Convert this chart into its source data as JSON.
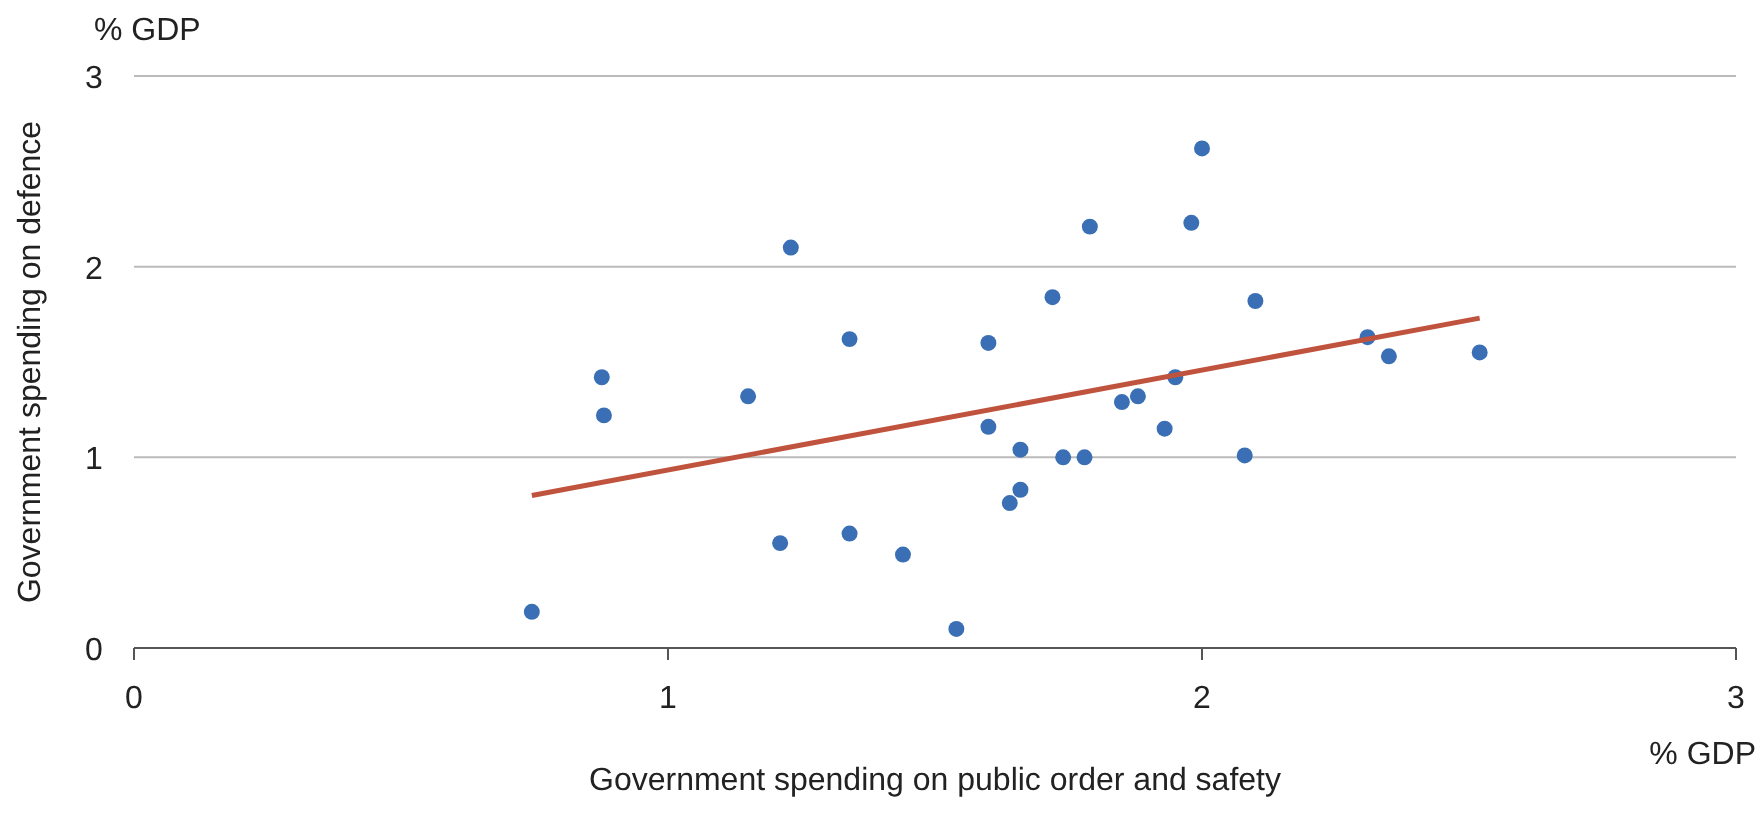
{
  "chart_data": {
    "type": "scatter",
    "xlabel": "Government spending on public order and safety",
    "ylabel": "Government spending on defence",
    "annotations": [
      "% GDP",
      "% GDP"
    ],
    "xlim": [
      0,
      3
    ],
    "ylim": [
      0,
      3
    ],
    "xticks": [
      0,
      1,
      2,
      3
    ],
    "yticks": [
      0,
      1,
      2,
      3
    ],
    "grid": "y",
    "series": [
      {
        "marker": "circle",
        "color": "#3a6fb5",
        "x": [
          0.745,
          0.876,
          0.88,
          1.15,
          1.23,
          1.21,
          1.34,
          1.34,
          1.44,
          1.54,
          1.6,
          1.6,
          1.72,
          1.64,
          1.66,
          1.66,
          1.74,
          1.78,
          1.79,
          1.85,
          1.88,
          1.93,
          1.95,
          1.98,
          2.0,
          2.08,
          2.1,
          2.31,
          2.35,
          2.52
        ],
        "values": [
          0.19,
          1.42,
          1.22,
          1.32,
          2.1,
          0.55,
          1.62,
          0.6,
          0.49,
          0.1,
          1.6,
          1.16,
          1.84,
          0.76,
          0.83,
          1.04,
          1.0,
          1.0,
          2.21,
          1.29,
          1.32,
          1.15,
          1.42,
          2.23,
          2.62,
          1.01,
          1.82,
          1.63,
          1.53,
          1.55
        ]
      },
      {
        "type": "line",
        "color": "#c0533d",
        "x": [
          0.745,
          2.52
        ],
        "values": [
          0.8,
          1.73
        ]
      }
    ]
  }
}
